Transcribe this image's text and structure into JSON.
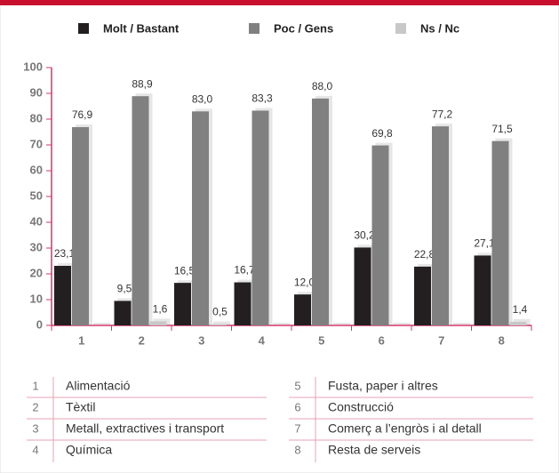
{
  "chart_data": {
    "type": "bar",
    "categories": [
      "1",
      "2",
      "3",
      "4",
      "5",
      "6",
      "7",
      "8"
    ],
    "series": [
      {
        "name": "Molt / Bastant",
        "color": "#231f20",
        "values": [
          23.1,
          9.5,
          16.5,
          16.7,
          12.0,
          30.2,
          22.8,
          27.1
        ],
        "value_labels": [
          "23,1",
          "9,5",
          "16,5",
          "16,7",
          "12,0",
          "30,2",
          "22,8",
          "27,1"
        ]
      },
      {
        "name": "Poc / Gens",
        "color": "#808080",
        "values": [
          76.9,
          88.9,
          83.0,
          83.3,
          88.0,
          69.8,
          77.2,
          71.5
        ],
        "value_labels": [
          "76,9",
          "88,9",
          "83,0",
          "83,3",
          "88,0",
          "69,8",
          "77,2",
          "71,5"
        ]
      },
      {
        "name": "Ns / Nc",
        "color": "#c8c8c8",
        "values": [
          0,
          1.6,
          0.5,
          0,
          0,
          0,
          0,
          1.4
        ],
        "value_labels": [
          null,
          "1,6",
          "0,5",
          null,
          null,
          null,
          null,
          "1,4"
        ]
      }
    ],
    "ylim": [
      0,
      100
    ],
    "yticks": [
      0,
      10,
      20,
      30,
      40,
      50,
      60,
      70,
      80,
      90,
      100
    ],
    "legend": "top",
    "key": [
      "Alimentació",
      "Tèxtil",
      "Metall, extractives i transport",
      "Química",
      "Fusta, paper i altres",
      "Construcció",
      "Comerç a l’engròs i al detall",
      "Resta de serveis"
    ]
  }
}
